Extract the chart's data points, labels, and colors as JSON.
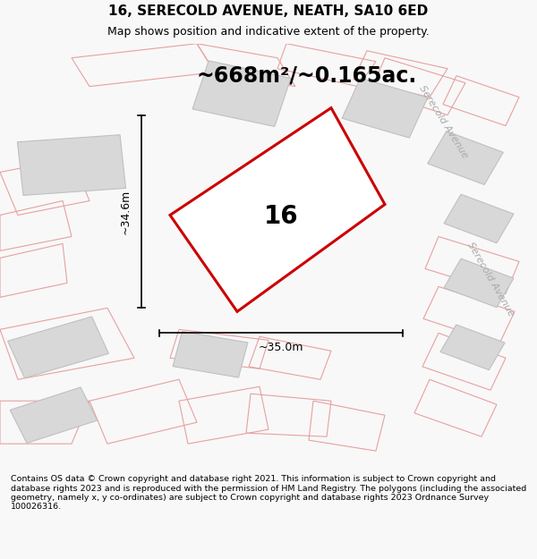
{
  "title": "16, SERECOLD AVENUE, NEATH, SA10 6ED",
  "subtitle": "Map shows position and indicative extent of the property.",
  "area_label": "~668m²/~0.165ac.",
  "number_label": "16",
  "width_label": "~35.0m",
  "height_label": "~34.6m",
  "footer": "Contains OS data © Crown copyright and database right 2021. This information is subject to Crown copyright and database rights 2023 and is reproduced with the permission of HM Land Registry. The polygons (including the associated geometry, namely x, y co-ordinates) are subject to Crown copyright and database rights 2023 Ordnance Survey 100026316.",
  "bg_color": "#f8f8f8",
  "map_bg": "#ffffff",
  "plot_fill": "#ffffff",
  "plot_edge": "#cc0000",
  "building_fill": "#d8d8d8",
  "building_edge": "#c0c0c0",
  "pink_edge": "#e8a0a0",
  "street_label_color": "#aaaaaa",
  "title_fontsize": 11,
  "subtitle_fontsize": 9,
  "area_fontsize": 17,
  "number_fontsize": 20,
  "dim_fontsize": 9,
  "footer_fontsize": 6.8,
  "street_fontsize": 8
}
